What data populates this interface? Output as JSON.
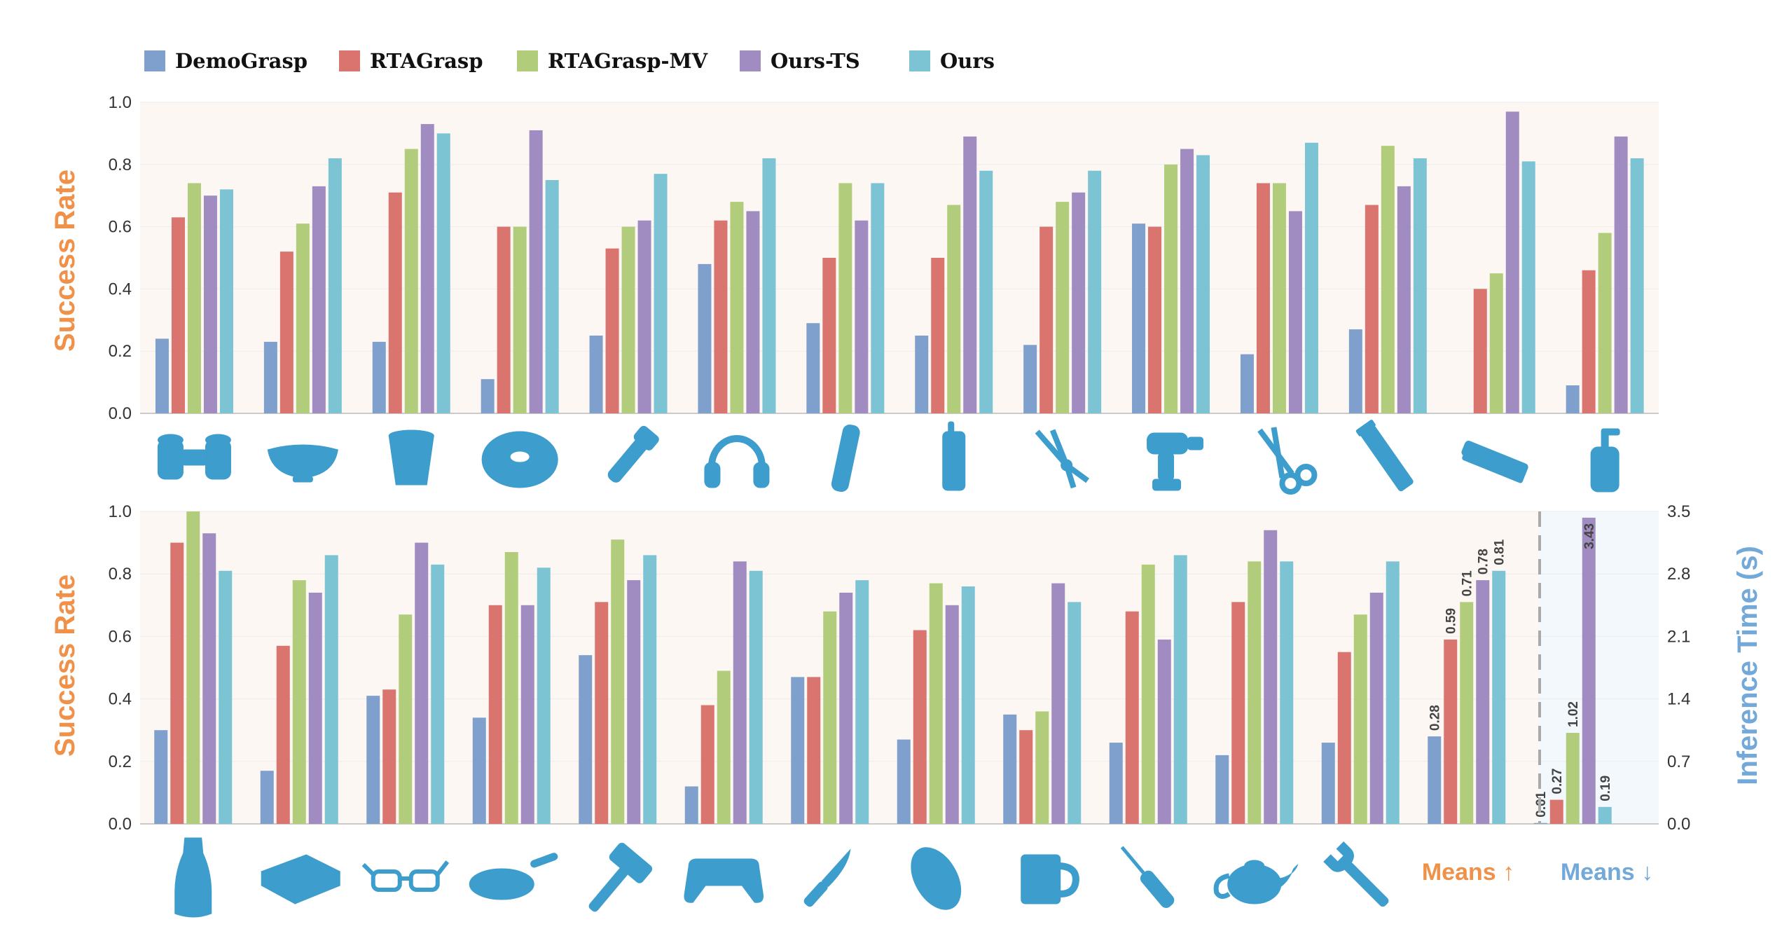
{
  "colors": {
    "DemoGrasp": "#7f9fcd",
    "RTAGrasp": "#d9746f",
    "RTAGrasp-MV": "#b1cd7b",
    "Ours-TS": "#a08cc0",
    "Ours": "#7cc4d4",
    "success_label": "#f0914a",
    "time_label": "#73a9d8",
    "plot_bg": "#fdf7f3",
    "means_bg": "#f3f8fd",
    "icon": "#3d9dcc"
  },
  "legend": [
    "DemoGrasp",
    "RTAGrasp",
    "RTAGrasp-MV",
    "Ours-TS",
    "Ours"
  ],
  "chart_data": [
    {
      "type": "bar",
      "panel": "top",
      "ylabel": "Success Rate",
      "ylim": [
        0,
        1.0
      ],
      "yticks": [
        "0.0",
        "0.2",
        "0.4",
        "0.6",
        "0.8",
        "1.0"
      ],
      "categories": [
        "binoculars",
        "bowl",
        "cup",
        "donut",
        "flashlight",
        "headphones",
        "lotion tube",
        "phone",
        "pliers",
        "drill",
        "scissors",
        "toothpaste",
        "stapler",
        "soap dispenser"
      ],
      "category_labels_printed": false,
      "series": [
        {
          "name": "DemoGrasp",
          "values": [
            0.24,
            0.23,
            0.23,
            0.11,
            0.25,
            0.48,
            0.29,
            0.25,
            0.22,
            0.61,
            0.19,
            0.27,
            0.0,
            0.09
          ]
        },
        {
          "name": "RTAGrasp",
          "values": [
            0.63,
            0.52,
            0.71,
            0.6,
            0.53,
            0.62,
            0.5,
            0.5,
            0.6,
            0.6,
            0.74,
            0.67,
            0.4,
            0.46
          ]
        },
        {
          "name": "RTAGrasp-MV",
          "values": [
            0.74,
            0.61,
            0.85,
            0.6,
            0.6,
            0.68,
            0.74,
            0.67,
            0.68,
            0.8,
            0.74,
            0.86,
            0.45,
            0.58
          ]
        },
        {
          "name": "Ours-TS",
          "values": [
            0.7,
            0.73,
            0.93,
            0.91,
            0.62,
            0.65,
            0.62,
            0.89,
            0.71,
            0.85,
            0.65,
            0.73,
            0.97,
            0.89
          ]
        },
        {
          "name": "Ours",
          "values": [
            0.72,
            0.82,
            0.9,
            0.75,
            0.77,
            0.82,
            0.74,
            0.78,
            0.78,
            0.83,
            0.87,
            0.82,
            0.81,
            0.82
          ]
        }
      ]
    },
    {
      "type": "bar",
      "panel": "bottom",
      "ylabel": "Success Rate",
      "y2label": "Inference Time (s)",
      "ylim": [
        0,
        1.0
      ],
      "y2lim": [
        0,
        3.5
      ],
      "yticks": [
        "0.0",
        "0.2",
        "0.4",
        "0.6",
        "0.8",
        "1.0"
      ],
      "y2ticks": [
        "0.0",
        "0.7",
        "1.4",
        "2.1",
        "2.8",
        "3.5"
      ],
      "categories": [
        "bottle",
        "camera",
        "glasses",
        "pan",
        "hammer",
        "gamepad",
        "knife",
        "mouse",
        "mug",
        "screwdriver",
        "teapot",
        "wrench",
        "Means ↑",
        "Means ↓"
      ],
      "series": [
        {
          "name": "DemoGrasp",
          "values": [
            0.3,
            0.17,
            0.41,
            0.34,
            0.54,
            0.12,
            0.47,
            0.27,
            0.35,
            0.26,
            0.22,
            0.26,
            0.28,
            0.01
          ]
        },
        {
          "name": "RTAGrasp",
          "values": [
            0.9,
            0.57,
            0.43,
            0.7,
            0.71,
            0.38,
            0.47,
            0.62,
            0.3,
            0.68,
            0.71,
            0.55,
            0.59,
            0.27
          ]
        },
        {
          "name": "RTAGrasp-MV",
          "values": [
            1.0,
            0.78,
            0.67,
            0.87,
            0.91,
            0.49,
            0.68,
            0.77,
            0.36,
            0.83,
            0.84,
            0.67,
            0.71,
            1.02
          ]
        },
        {
          "name": "Ours-TS",
          "values": [
            0.93,
            0.74,
            0.9,
            0.7,
            0.78,
            0.84,
            0.74,
            0.7,
            0.77,
            0.59,
            0.94,
            0.74,
            0.78,
            3.43
          ]
        },
        {
          "name": "Ours",
          "values": [
            0.81,
            0.86,
            0.83,
            0.82,
            0.86,
            0.81,
            0.78,
            0.76,
            0.71,
            0.86,
            0.84,
            0.84,
            0.81,
            0.19
          ]
        }
      ],
      "annotations": {
        "means_success": [
          "0.28",
          "0.59",
          "0.71",
          "0.78",
          "0.81"
        ],
        "means_time": [
          "0.01",
          "0.27",
          "1.02",
          "3.43",
          "0.19"
        ]
      },
      "means_labels": {
        "success": "Means ↑",
        "time": "Means ↓"
      }
    }
  ]
}
